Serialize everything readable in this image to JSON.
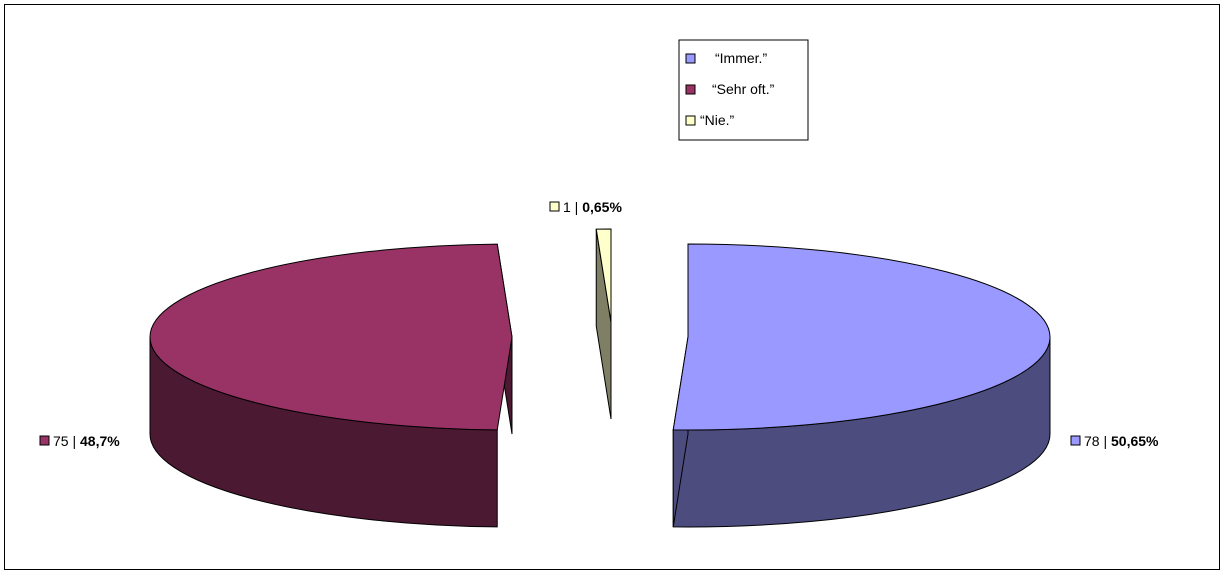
{
  "chart_data": {
    "type": "pie",
    "variant": "3d-exploded",
    "labels": [
      "“Immer.”",
      "“Sehr oft.”",
      "“Nie.”"
    ],
    "values": [
      78,
      75,
      1
    ],
    "percent_labels": [
      "50,65%",
      "48,7%",
      "0,65%"
    ],
    "count_labels": [
      "78",
      "75",
      "1"
    ],
    "colors": [
      "#9999ff",
      "#993366",
      "#ffffcc"
    ],
    "side_colors": [
      "#4c4c7f",
      "#4c1933",
      "#7f7f66"
    ],
    "legend_position": "top-center"
  },
  "legend": {
    "items": [
      {
        "label": "“Immer.”",
        "color": "#9999ff"
      },
      {
        "label": "“Sehr oft.”",
        "color": "#993366"
      },
      {
        "label": "“Nie.”",
        "color": "#ffffcc"
      }
    ]
  }
}
